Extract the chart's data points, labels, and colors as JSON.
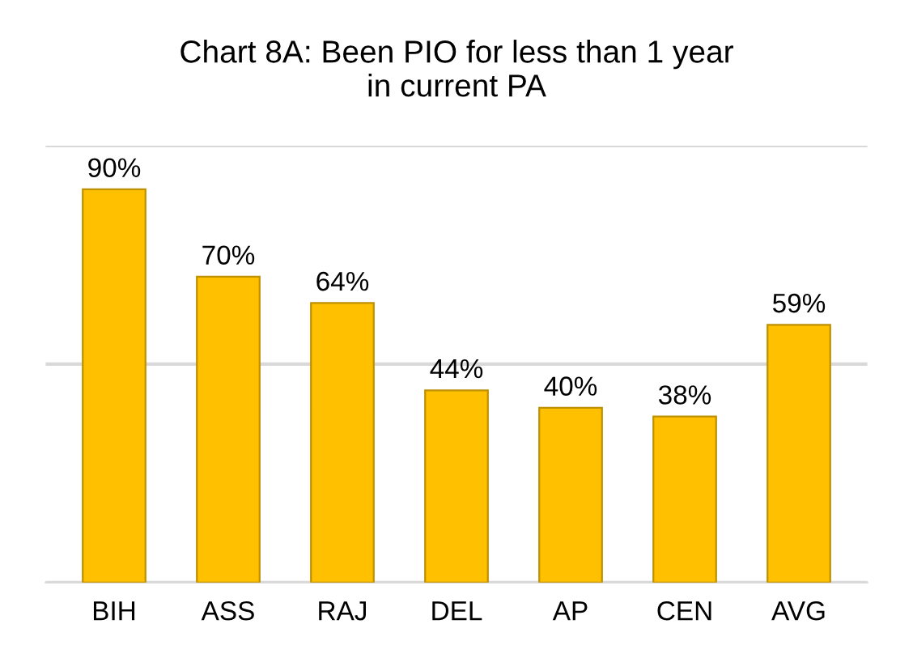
{
  "chart_data": {
    "type": "bar",
    "title": "Chart 8A: Been PIO for less than 1 year\nin current PA",
    "categories": [
      "BIH",
      "ASS",
      "RAJ",
      "DEL",
      "AP",
      "CEN",
      "AVG"
    ],
    "values": [
      90,
      70,
      64,
      44,
      40,
      38,
      59
    ],
    "value_labels": [
      "90%",
      "70%",
      "64%",
      "44%",
      "40%",
      "38%",
      "59%"
    ],
    "color": "#ffc000",
    "ylim": [
      0,
      100
    ],
    "yticks": [
      {
        "value": 0,
        "label": null
      },
      {
        "value": 50,
        "label": null
      },
      {
        "value": 100,
        "label": null
      }
    ],
    "tick_labels": "x",
    "grid": "y"
  }
}
